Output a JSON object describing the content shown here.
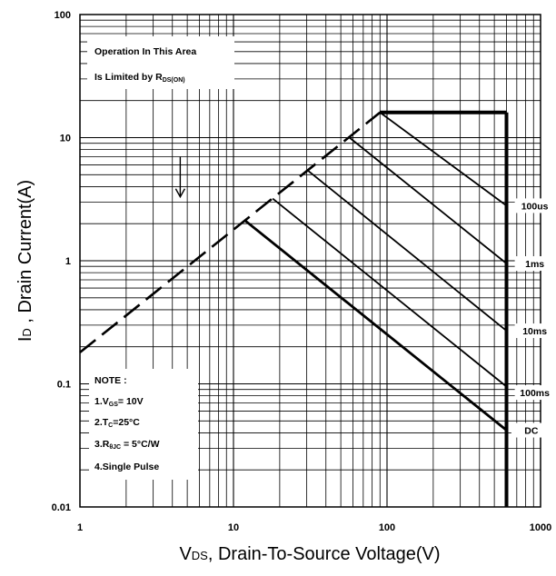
{
  "chart_data": {
    "type": "line",
    "title": "",
    "xlabel": "VDS, Drain-To-Source Voltage(V)",
    "ylabel": "ID , Drain Current(A)",
    "xscale": "log",
    "yscale": "log",
    "xlim": [
      1,
      1000
    ],
    "ylim": [
      0.01,
      100
    ],
    "x_ticks": [
      {
        "value": 1,
        "label": "1"
      },
      {
        "value": 10,
        "label": "10"
      },
      {
        "value": 100,
        "label": "100"
      },
      {
        "value": 1000,
        "label": "1000"
      }
    ],
    "y_ticks": [
      {
        "value": 100,
        "label": "100"
      },
      {
        "value": 10,
        "label": "10"
      },
      {
        "value": 1,
        "label": "1"
      },
      {
        "value": 0.1,
        "label": "0.1"
      },
      {
        "value": 0.01,
        "label": "0.01"
      }
    ],
    "grid": true,
    "series": [
      {
        "name": "100us",
        "points": [
          [
            90,
            16
          ],
          [
            600,
            2.8
          ]
        ]
      },
      {
        "name": "1ms",
        "points": [
          [
            57,
            10
          ],
          [
            600,
            0.95
          ]
        ]
      },
      {
        "name": "10ms",
        "points": [
          [
            30,
            5.5
          ],
          [
            600,
            0.27
          ]
        ]
      },
      {
        "name": "100ms",
        "points": [
          [
            18,
            3.2
          ],
          [
            600,
            0.095
          ]
        ]
      },
      {
        "name": "DC",
        "points": [
          [
            12,
            2.1
          ],
          [
            600,
            0.042
          ]
        ]
      }
    ],
    "rds_limit_line": [
      [
        1,
        0.18
      ],
      [
        90,
        16
      ]
    ],
    "current_limit_line": [
      [
        90,
        16
      ],
      [
        600,
        16
      ]
    ],
    "voltage_limit_line": [
      [
        600,
        16
      ],
      [
        600,
        0.01
      ]
    ],
    "annotations": {
      "rds_text_line1": "Operation In This Area",
      "rds_text_line2_prefix": "Is Limited by R",
      "rds_text_line2_sub": "DS(ON)",
      "arrow": {
        "from": [
          4.5,
          7
        ],
        "to": [
          4.5,
          3.3
        ]
      },
      "note_title": "NOTE :",
      "note_1_prefix": "1.V",
      "note_1_sub": "GS",
      "note_1_suffix": "= 10V",
      "note_2_prefix": "2.T",
      "note_2_sub": "C",
      "note_2_suffix": "=25°C",
      "note_3_prefix": "3.R",
      "note_3_sub": "θJC",
      "note_3_suffix": " = 5°C/W",
      "note_4": "4.Single Pulse"
    },
    "label_pos": {
      "100us": [
        800,
        2.8
      ],
      "1ms": [
        800,
        0.95
      ],
      "10ms": [
        800,
        0.27
      ],
      "100ms": [
        800,
        0.085
      ],
      "DC": [
        760,
        0.042
      ]
    },
    "ylabel_main": "I",
    "ylabel_sub": "D",
    "ylabel_rest": " , Drain Current(A)",
    "xlabel_main": "V",
    "xlabel_sub": "DS",
    "xlabel_rest": ", Drain-To-Source Voltage(V)"
  }
}
